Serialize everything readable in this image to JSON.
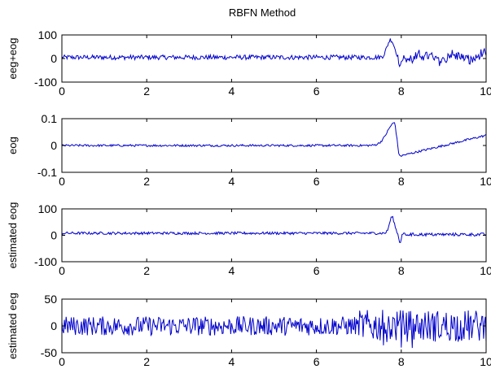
{
  "figure": {
    "title": "RBFN Method"
  },
  "colors": {
    "line": "#0000cc",
    "axis": "#000000",
    "background": "#ffffff"
  },
  "chart_data": [
    {
      "type": "line",
      "ylabel": "eeg+eog",
      "xlim": [
        0,
        10
      ],
      "ylim": [
        -100,
        100
      ],
      "xticks": [
        "0",
        "2",
        "4",
        "6",
        "8",
        "10"
      ],
      "yticks": [
        "100",
        "0",
        "-100"
      ],
      "series": [
        {
          "description": "noisy signal ~±10 around 0 with a spike to ~85 near x=7.8, dip to ~-15 near 8.0, then ±20 oscillation up to ~50"
        }
      ]
    },
    {
      "type": "line",
      "ylabel": "eog",
      "xlim": [
        0,
        10
      ],
      "ylim": [
        -0.1,
        0.1
      ],
      "xticks": [
        "0",
        "2",
        "4",
        "6",
        "8",
        "10"
      ],
      "yticks": [
        "0.1",
        "0",
        "-0.1"
      ],
      "series": [
        {
          "description": "near-zero baseline, rising to ~0.085 at x≈7.85, dropping to ~-0.04 at x≈7.95, then recovering to ~0.04 by x=10"
        }
      ]
    },
    {
      "type": "line",
      "ylabel": "estimated eog",
      "xlim": [
        0,
        10
      ],
      "ylim": [
        -100,
        100
      ],
      "xticks": [
        "0",
        "2",
        "4",
        "6",
        "8",
        "10"
      ],
      "yticks": [
        "100",
        "0",
        "-100"
      ],
      "series": [
        {
          "description": "baseline ~8 with small noise, peak ~70 at x≈7.8, dip ~-25 at x≈7.95, then ~5 with noise"
        }
      ]
    },
    {
      "type": "line",
      "ylabel": "estimated eeg",
      "xlim": [
        0,
        10
      ],
      "ylim": [
        -50,
        50
      ],
      "xticks": [
        "0",
        "2",
        "4",
        "6",
        "8",
        "10"
      ],
      "yticks": [
        "50",
        "0",
        "-50"
      ],
      "series": [
        {
          "description": "dense noise ~±20 across range, larger excursions up to ~±40 after x=7"
        }
      ]
    }
  ]
}
